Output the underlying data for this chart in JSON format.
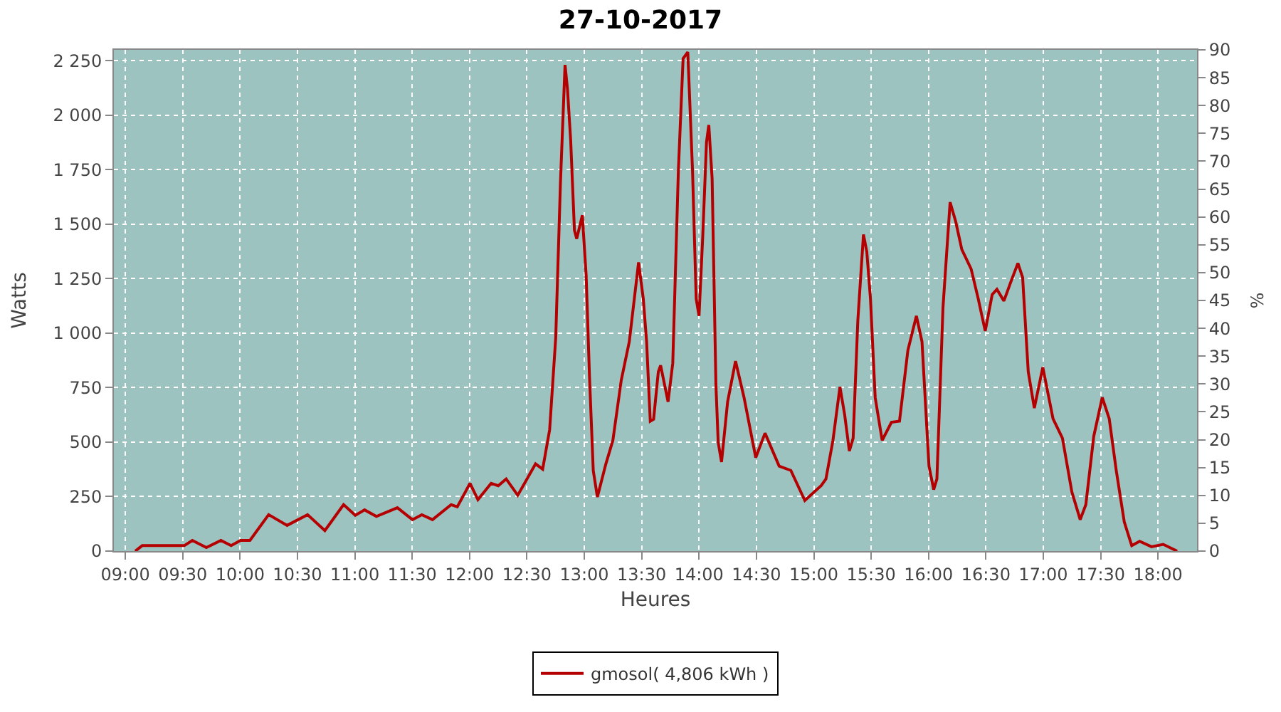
{
  "chart_data": {
    "type": "line",
    "title": "27-10-2017",
    "xlabel": "Heures",
    "ylabel": "Watts",
    "y2label": "%",
    "x": [
      9.086,
      9.147,
      9.514,
      9.584,
      9.706,
      9.833,
      9.922,
      10.004,
      10.086,
      10.249,
      10.41,
      10.588,
      10.739,
      10.902,
      11.004,
      11.085,
      11.188,
      11.371,
      11.502,
      11.584,
      11.677,
      11.84,
      11.893,
      12.004,
      12.073,
      12.188,
      12.25,
      12.319,
      12.42,
      12.575,
      12.637,
      12.698,
      12.751,
      12.792,
      12.832,
      12.853,
      12.881,
      12.914,
      12.934,
      12.983,
      13.016,
      13.045,
      13.078,
      13.114,
      13.188,
      13.249,
      13.322,
      13.392,
      13.473,
      13.514,
      13.543,
      13.575,
      13.604,
      13.645,
      13.665,
      13.73,
      13.771,
      13.82,
      13.861,
      13.902,
      13.943,
      13.975,
      14.0,
      14.033,
      14.065,
      14.085,
      14.114,
      14.147,
      14.167,
      14.196,
      14.249,
      14.318,
      14.392,
      14.494,
      14.575,
      14.698,
      14.8,
      14.922,
      15.065,
      15.106,
      15.167,
      15.228,
      15.269,
      15.31,
      15.343,
      15.384,
      15.433,
      15.462,
      15.494,
      15.535,
      15.596,
      15.677,
      15.747,
      15.82,
      15.894,
      15.943,
      16.004,
      16.045,
      16.073,
      16.126,
      16.188,
      16.237,
      16.29,
      16.371,
      16.433,
      16.494,
      16.555,
      16.596,
      16.657,
      16.718,
      16.779,
      16.82,
      16.869,
      16.922,
      16.996,
      17.085,
      17.167,
      17.249,
      17.322,
      17.371,
      17.44,
      17.514,
      17.575,
      17.636,
      17.706,
      17.771,
      17.84,
      17.943,
      18.045,
      18.167
    ],
    "series": [
      {
        "name": "gmosol( 4,806 kWh )",
        "color": "#b40000",
        "values": [
          0,
          25,
          25,
          49,
          16,
          49,
          25,
          49,
          49,
          167,
          118,
          167,
          94,
          213,
          164,
          189,
          159,
          199,
          144,
          167,
          144,
          213,
          203,
          311,
          236,
          311,
          300,
          331,
          256,
          400,
          376,
          557,
          980,
          1689,
          2231,
          2122,
          1886,
          1472,
          1433,
          1541,
          1266,
          803,
          370,
          248,
          400,
          508,
          784,
          961,
          1325,
          1158,
          961,
          596,
          605,
          823,
          852,
          685,
          862,
          1748,
          2260,
          2290,
          1748,
          1158,
          1079,
          1453,
          1876,
          1955,
          1709,
          764,
          498,
          409,
          685,
          872,
          705,
          429,
          541,
          390,
          370,
          232,
          301,
          331,
          508,
          754,
          626,
          459,
          518,
          1059,
          1453,
          1374,
          1158,
          705,
          508,
          591,
          596,
          921,
          1079,
          961,
          390,
          282,
          331,
          1118,
          1601,
          1512,
          1384,
          1295,
          1158,
          1010,
          1177,
          1201,
          1148,
          1236,
          1321,
          1256,
          823,
          656,
          843,
          607,
          518,
          272,
          144,
          213,
          527,
          705,
          607,
          370,
          134,
          25,
          45,
          20,
          31,
          0
        ]
      }
    ],
    "xlim": [
      8.9,
      18.34
    ],
    "xticks": [
      {
        "value": 9,
        "label": "09:00"
      },
      {
        "value": 9.5,
        "label": "09:30"
      },
      {
        "value": 10,
        "label": "10:00"
      },
      {
        "value": 10.5,
        "label": "10:30"
      },
      {
        "value": 11,
        "label": "11:00"
      },
      {
        "value": 11.5,
        "label": "11:30"
      },
      {
        "value": 12,
        "label": "12:00"
      },
      {
        "value": 12.5,
        "label": "12:30"
      },
      {
        "value": 13,
        "label": "13:00"
      },
      {
        "value": 13.5,
        "label": "13:30"
      },
      {
        "value": 14,
        "label": "14:00"
      },
      {
        "value": 14.5,
        "label": "14:30"
      },
      {
        "value": 15,
        "label": "15:00"
      },
      {
        "value": 15.5,
        "label": "15:30"
      },
      {
        "value": 16,
        "label": "16:00"
      },
      {
        "value": 16.5,
        "label": "16:30"
      },
      {
        "value": 17,
        "label": "17:00"
      },
      {
        "value": 17.5,
        "label": "17:30"
      },
      {
        "value": 18,
        "label": "18:00"
      }
    ],
    "ylim": [
      0,
      2300
    ],
    "yticks": [
      0,
      250,
      500,
      750,
      {
        "value": 1000,
        "label": "1 000"
      },
      {
        "value": 1250,
        "label": "1 250"
      },
      {
        "value": 1500,
        "label": "1 500"
      },
      {
        "value": 1750,
        "label": "1 750"
      },
      {
        "value": 2000,
        "label": "2 000"
      },
      {
        "value": 2250,
        "label": "2 250"
      }
    ],
    "y2lim": [
      0,
      90
    ],
    "y2ticks": [
      0,
      5,
      10,
      15,
      20,
      25,
      30,
      35,
      40,
      45,
      50,
      55,
      60,
      65,
      70,
      75,
      80,
      85,
      90
    ],
    "grid": true,
    "legend": "bottom",
    "marker": "none",
    "line_style": "solid"
  }
}
